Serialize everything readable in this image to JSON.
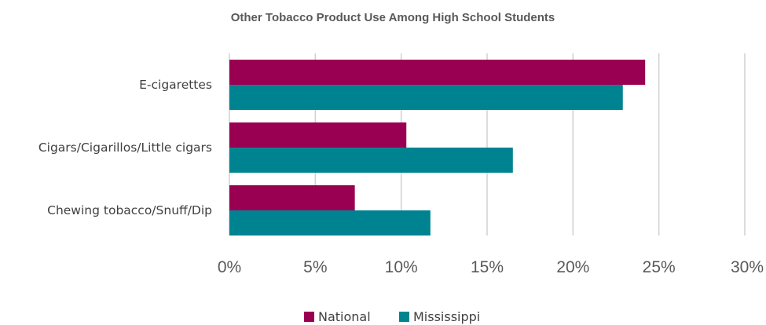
{
  "chart_data": {
    "type": "bar",
    "orientation": "horizontal",
    "title": "Other Tobacco Product Use Among High School Students",
    "categories": [
      "E-cigarettes",
      "Cigars/Cigarillos/Little cigars",
      "Chewing tobacco/Snuff/Dip"
    ],
    "series": [
      {
        "name": "National",
        "values": [
          24.2,
          10.3,
          7.3
        ],
        "color": "#990052"
      },
      {
        "name": "Mississippi",
        "values": [
          22.9,
          16.5,
          11.7
        ],
        "color": "#008391"
      }
    ],
    "xlim": [
      0,
      30
    ],
    "ticks": [
      0,
      5,
      10,
      15,
      20,
      25,
      30
    ],
    "tick_labels": [
      "0%",
      "5%",
      "10%",
      "15%",
      "20%",
      "25%",
      "30%"
    ],
    "grid": true,
    "legend_position": "bottom"
  }
}
